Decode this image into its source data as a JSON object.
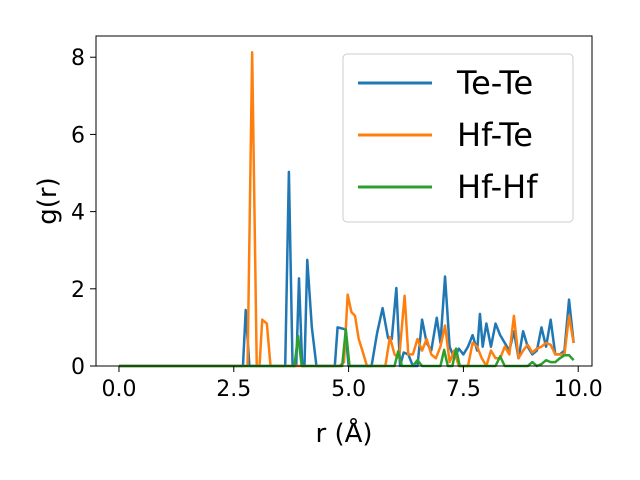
{
  "chart_data": {
    "type": "line",
    "title": "",
    "xlabel": "r (Å)",
    "ylabel": "g(r)",
    "xlim": [
      -0.5,
      10.3
    ],
    "ylim": [
      0,
      8.55
    ],
    "xticks": [
      0.0,
      2.5,
      5.0,
      7.5,
      10.0
    ],
    "xtick_labels": [
      "0.0",
      "2.5",
      "5.0",
      "7.5",
      "10.0"
    ],
    "yticks": [
      0,
      2,
      4,
      6,
      8
    ],
    "ytick_labels": [
      "0",
      "2",
      "4",
      "6",
      "8"
    ],
    "legend_position": "top-right",
    "series": [
      {
        "name": "Te-Te",
        "color": "#1f77b4",
        "points": [
          [
            0,
            0
          ],
          [
            2.7,
            0
          ],
          [
            2.76,
            1.45
          ],
          [
            2.84,
            0
          ],
          [
            3.62,
            0
          ],
          [
            3.7,
            5.03
          ],
          [
            3.78,
            0
          ],
          [
            3.86,
            0
          ],
          [
            3.92,
            2.27
          ],
          [
            3.99,
            0
          ],
          [
            4.04,
            0
          ],
          [
            4.1,
            2.75
          ],
          [
            4.2,
            1.0
          ],
          [
            4.3,
            0
          ],
          [
            4.7,
            0
          ],
          [
            4.76,
            1.0
          ],
          [
            4.93,
            0.95
          ],
          [
            5.0,
            0
          ],
          [
            5.5,
            0
          ],
          [
            5.62,
            0.85
          ],
          [
            5.74,
            1.5
          ],
          [
            5.86,
            0.72
          ],
          [
            5.94,
            0.7
          ],
          [
            6.04,
            2.02
          ],
          [
            6.12,
            0
          ],
          [
            6.2,
            0.35
          ],
          [
            6.3,
            0.3
          ],
          [
            6.4,
            0
          ],
          [
            6.5,
            0
          ],
          [
            6.6,
            1.2
          ],
          [
            6.7,
            0.6
          ],
          [
            6.8,
            0.4
          ],
          [
            6.92,
            1.25
          ],
          [
            7.0,
            0.6
          ],
          [
            7.1,
            2.32
          ],
          [
            7.2,
            0.5
          ],
          [
            7.3,
            0.2
          ],
          [
            7.4,
            0.45
          ],
          [
            7.5,
            0.3
          ],
          [
            7.6,
            0.5
          ],
          [
            7.7,
            0.8
          ],
          [
            7.8,
            0.4
          ],
          [
            7.86,
            1.35
          ],
          [
            7.92,
            0.5
          ],
          [
            8.0,
            1.1
          ],
          [
            8.1,
            0.5
          ],
          [
            8.2,
            1.1
          ],
          [
            8.3,
            0.8
          ],
          [
            8.4,
            0.6
          ],
          [
            8.5,
            0.4
          ],
          [
            8.6,
            0.9
          ],
          [
            8.7,
            0.2
          ],
          [
            8.8,
            0.9
          ],
          [
            8.9,
            0.5
          ],
          [
            9.0,
            0.3
          ],
          [
            9.1,
            0.4
          ],
          [
            9.2,
            1.0
          ],
          [
            9.3,
            0.5
          ],
          [
            9.4,
            1.2
          ],
          [
            9.5,
            0.3
          ],
          [
            9.6,
            0.3
          ],
          [
            9.7,
            0.4
          ],
          [
            9.8,
            1.72
          ],
          [
            9.9,
            0.6
          ]
        ]
      },
      {
        "name": "Hf-Te",
        "color": "#ff7f0e",
        "points": [
          [
            0,
            0
          ],
          [
            2.8,
            0
          ],
          [
            2.9,
            8.13
          ],
          [
            3.0,
            0
          ],
          [
            3.06,
            0
          ],
          [
            3.12,
            1.2
          ],
          [
            3.22,
            1.1
          ],
          [
            3.3,
            0
          ],
          [
            4.8,
            0
          ],
          [
            4.9,
            0.1
          ],
          [
            4.98,
            1.85
          ],
          [
            5.06,
            1.4
          ],
          [
            5.14,
            1.3
          ],
          [
            5.22,
            0.7
          ],
          [
            5.3,
            0.4
          ],
          [
            5.4,
            0
          ],
          [
            5.8,
            0
          ],
          [
            5.9,
            0.75
          ],
          [
            6.0,
            0.3
          ],
          [
            6.1,
            0.2
          ],
          [
            6.22,
            1.82
          ],
          [
            6.3,
            0.3
          ],
          [
            6.4,
            0.3
          ],
          [
            6.5,
            0.7
          ],
          [
            6.6,
            0.4
          ],
          [
            6.7,
            0.7
          ],
          [
            6.8,
            0.3
          ],
          [
            6.9,
            0.2
          ],
          [
            7.0,
            0.5
          ],
          [
            7.1,
            1.05
          ],
          [
            7.2,
            0.1
          ],
          [
            7.3,
            0.4
          ],
          [
            7.4,
            0
          ],
          [
            7.6,
            0
          ],
          [
            7.7,
            0.6
          ],
          [
            7.8,
            0.5
          ],
          [
            7.9,
            0.2
          ],
          [
            8.0,
            0
          ],
          [
            8.1,
            0.4
          ],
          [
            8.2,
            0.2
          ],
          [
            8.3,
            0.2
          ],
          [
            8.4,
            0.5
          ],
          [
            8.5,
            0.3
          ],
          [
            8.6,
            1.3
          ],
          [
            8.7,
            0.2
          ],
          [
            8.8,
            0.4
          ],
          [
            8.9,
            0.55
          ],
          [
            9.0,
            0.35
          ],
          [
            9.1,
            0.45
          ],
          [
            9.2,
            0.5
          ],
          [
            9.3,
            0.6
          ],
          [
            9.4,
            0.55
          ],
          [
            9.5,
            0.3
          ],
          [
            9.6,
            0.3
          ],
          [
            9.7,
            0.3
          ],
          [
            9.8,
            1.3
          ],
          [
            9.9,
            0.6
          ]
        ]
      },
      {
        "name": "Hf-Hf",
        "color": "#2ca02c",
        "points": [
          [
            0,
            0
          ],
          [
            3.82,
            0
          ],
          [
            3.9,
            0.78
          ],
          [
            3.98,
            0
          ],
          [
            4.86,
            0
          ],
          [
            4.94,
            0.95
          ],
          [
            5.02,
            0
          ],
          [
            6.0,
            0
          ],
          [
            6.08,
            0.38
          ],
          [
            6.16,
            0
          ],
          [
            6.4,
            0
          ],
          [
            6.5,
            0.15
          ],
          [
            6.6,
            0
          ],
          [
            7.0,
            0
          ],
          [
            7.08,
            0.42
          ],
          [
            7.16,
            0
          ],
          [
            7.26,
            0
          ],
          [
            7.34,
            0.45
          ],
          [
            7.42,
            0
          ],
          [
            8.2,
            0
          ],
          [
            8.3,
            0.25
          ],
          [
            8.4,
            0
          ],
          [
            8.9,
            0
          ],
          [
            9.0,
            0.1
          ],
          [
            9.1,
            0
          ],
          [
            9.2,
            0.05
          ],
          [
            9.3,
            0.15
          ],
          [
            9.4,
            0.1
          ],
          [
            9.5,
            0.1
          ],
          [
            9.6,
            0.2
          ],
          [
            9.7,
            0.28
          ],
          [
            9.8,
            0.28
          ],
          [
            9.9,
            0.15
          ]
        ]
      }
    ]
  }
}
